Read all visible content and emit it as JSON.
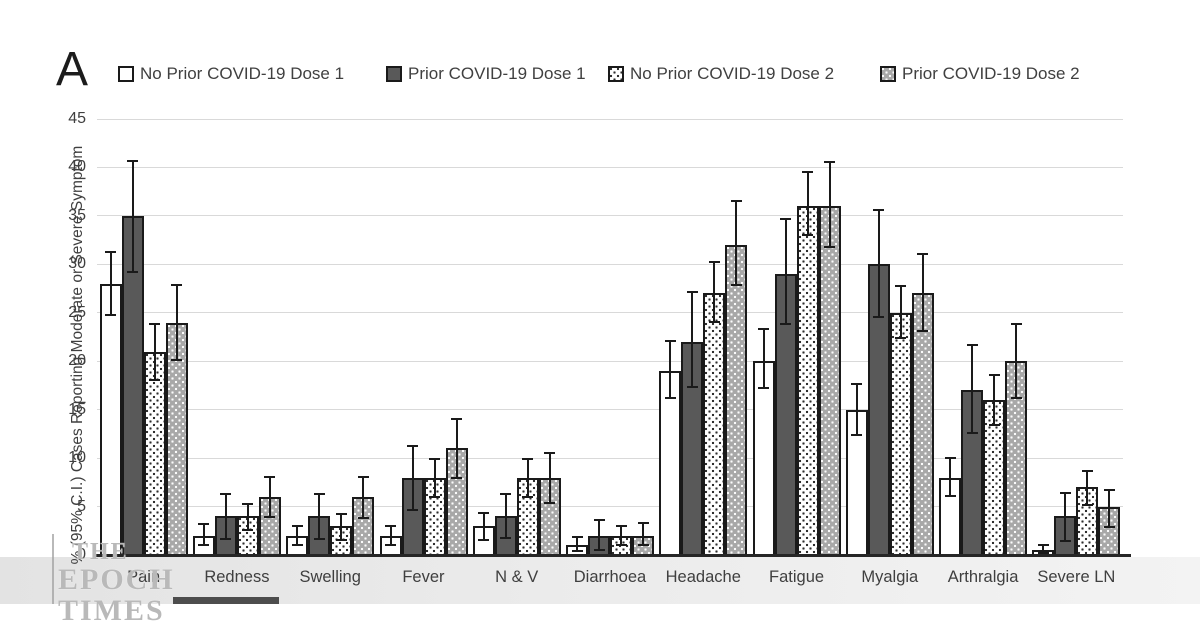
{
  "panel_label": "A",
  "watermark": {
    "line1": "THE",
    "line2": "EPOCH",
    "line3": "TIMES"
  },
  "colors": {
    "bar_border": "#1a1a1a",
    "series2_fill": "#595959",
    "series4_fill": "#a8a8a8",
    "gridline": "#d9d9d9",
    "axis_line": "#262626",
    "label_text": "#3f3f3f",
    "watermark_text": "#b9b9b9",
    "bottom_band": "#e8e8e8"
  },
  "chart_data": {
    "type": "bar",
    "title": "",
    "xlabel": "",
    "ylabel": "% (95% C.I.) Cases Reporting Moderate or Severe Symptom",
    "ylim": [
      0,
      45
    ],
    "ytick_interval": 5,
    "grid": true,
    "legend_position": "top",
    "error_bars": "95% C.I.",
    "categories": [
      "Pain",
      "Redness",
      "Swelling",
      "Fever",
      "N & V",
      "Diarrhoea",
      "Headache",
      "Fatigue",
      "Myalgia",
      "Arthralgia",
      "Severe LN"
    ],
    "series": [
      {
        "name": "No Prior COVID-19 Dose 1",
        "style": "white",
        "values": [
          28,
          2,
          2,
          2,
          3,
          1,
          19,
          20,
          15,
          8,
          0.5
        ],
        "ci_low": [
          24.8,
          1.0,
          1.0,
          1.0,
          1.6,
          0.4,
          16.2,
          17.2,
          12.4,
          6.1,
          0.2
        ],
        "ci_high": [
          31.3,
          3.2,
          3.0,
          3.0,
          4.3,
          1.9,
          22.1,
          23.3,
          17.7,
          10.0,
          1.0
        ]
      },
      {
        "name": "Prior COVID-19 Dose 1",
        "style": "dark-gray",
        "values": [
          35,
          4,
          4,
          8,
          4,
          2,
          22,
          29,
          30,
          17,
          4
        ],
        "ci_low": [
          29.2,
          1.7,
          1.7,
          4.7,
          1.8,
          0.5,
          17.3,
          23.8,
          24.6,
          12.6,
          1.5
        ],
        "ci_high": [
          40.7,
          6.3,
          6.3,
          11.3,
          6.3,
          3.6,
          27.2,
          34.7,
          35.6,
          21.7,
          6.4
        ]
      },
      {
        "name": "No Prior COVID-19 Dose 2",
        "style": "white-dotted",
        "values": [
          21,
          4,
          3,
          8,
          8,
          2,
          27,
          36,
          25,
          16,
          7
        ],
        "ci_low": [
          18.1,
          2.6,
          1.6,
          6.0,
          6.0,
          1.0,
          24.1,
          33.0,
          22.4,
          13.4,
          5.2
        ],
        "ci_high": [
          23.8,
          5.3,
          4.2,
          9.9,
          9.9,
          3.0,
          30.2,
          39.5,
          27.8,
          18.6,
          8.7
        ]
      },
      {
        "name": "Prior COVID-19 Dose 2",
        "style": "gray-dotted",
        "values": [
          24,
          6,
          6,
          11,
          8,
          2,
          32,
          36,
          27,
          20,
          5
        ],
        "ci_low": [
          20.1,
          3.9,
          3.8,
          8.0,
          5.4,
          1.0,
          27.9,
          31.8,
          23.1,
          16.2,
          2.9
        ],
        "ci_high": [
          27.9,
          8.1,
          8.1,
          14.0,
          10.5,
          3.3,
          36.5,
          40.6,
          31.1,
          23.8,
          6.7
        ]
      }
    ]
  }
}
